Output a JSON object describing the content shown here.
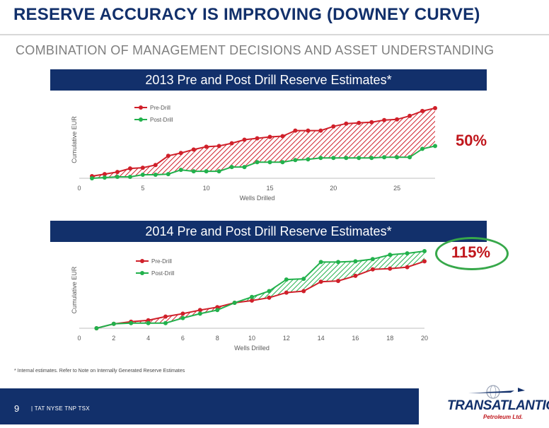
{
  "header": {
    "title": "RESERVE ACCURACY IS IMPROVING (DOWNEY CURVE)",
    "subtitle": "COMBINATION OF MANAGEMENT DECISIONS AND ASSET UNDERSTANDING"
  },
  "chart_data": [
    {
      "type": "line",
      "title": "2013 Pre and Post Drill Reserve Estimates*",
      "xlabel": "Wells Drilled",
      "ylabel": "Cumulative EUR",
      "xlim": [
        0,
        28
      ],
      "ylim": [
        0,
        1.1
      ],
      "xticks": [
        0,
        5,
        10,
        15,
        20,
        25
      ],
      "legend": "top-left",
      "fill_between": "hatched red",
      "x": [
        1,
        2,
        3,
        4,
        5,
        6,
        7,
        8,
        9,
        10,
        11,
        12,
        13,
        14,
        15,
        16,
        17,
        18,
        19,
        20,
        21,
        22,
        23,
        24,
        25,
        26,
        27,
        28
      ],
      "series": [
        {
          "name": "Pre-Drill",
          "color": "#d0202a",
          "values": [
            0.03,
            0.06,
            0.09,
            0.14,
            0.15,
            0.19,
            0.32,
            0.36,
            0.41,
            0.45,
            0.46,
            0.5,
            0.55,
            0.57,
            0.59,
            0.6,
            0.68,
            0.68,
            0.68,
            0.74,
            0.78,
            0.79,
            0.8,
            0.83,
            0.84,
            0.89,
            0.96,
            1.0
          ]
        },
        {
          "name": "Post-Drill",
          "color": "#22b14c",
          "values": [
            0.0,
            0.01,
            0.02,
            0.02,
            0.05,
            0.05,
            0.06,
            0.12,
            0.1,
            0.1,
            0.1,
            0.16,
            0.16,
            0.23,
            0.23,
            0.23,
            0.26,
            0.27,
            0.29,
            0.29,
            0.29,
            0.29,
            0.29,
            0.3,
            0.3,
            0.3,
            0.42,
            0.46
          ]
        }
      ],
      "annotation": "50%"
    },
    {
      "type": "line",
      "title": "2014 Pre and Post Drill Reserve Estimates*",
      "xlabel": "Wells Drilled",
      "ylabel": "Cumulative EUR",
      "xlim": [
        0,
        20
      ],
      "ylim": [
        0,
        1.05
      ],
      "xticks": [
        0,
        2,
        4,
        6,
        8,
        10,
        12,
        14,
        16,
        18,
        20
      ],
      "legend": "top-left",
      "fill_between": "hatched red where Pre-Drill higher, hatched green where Post-Drill higher",
      "x": [
        1,
        2,
        3,
        4,
        5,
        6,
        7,
        8,
        9,
        10,
        11,
        12,
        13,
        14,
        15,
        16,
        17,
        18,
        19,
        20
      ],
      "series": [
        {
          "name": "Pre-Drill",
          "color": "#d0202a",
          "values": [
            0.0,
            0.06,
            0.09,
            0.11,
            0.16,
            0.2,
            0.25,
            0.29,
            0.35,
            0.38,
            0.42,
            0.49,
            0.51,
            0.64,
            0.65,
            0.72,
            0.81,
            0.82,
            0.84,
            0.92
          ]
        },
        {
          "name": "Post-Drill",
          "color": "#22b14c",
          "values": [
            0.0,
            0.06,
            0.07,
            0.07,
            0.07,
            0.14,
            0.2,
            0.25,
            0.35,
            0.43,
            0.51,
            0.67,
            0.68,
            0.91,
            0.91,
            0.92,
            0.95,
            1.01,
            1.03,
            1.06
          ]
        }
      ],
      "annotation": "115%"
    }
  ],
  "footnote": "* Internal estimates.  Refer to Note on Internally Generated Reserve Estimates",
  "footer": {
    "page": "9",
    "ticker": "|  TAT NYSE   TNP TSX",
    "logo_main": "TRANSATLANTIC",
    "logo_sub": "Petroleum Ltd."
  }
}
